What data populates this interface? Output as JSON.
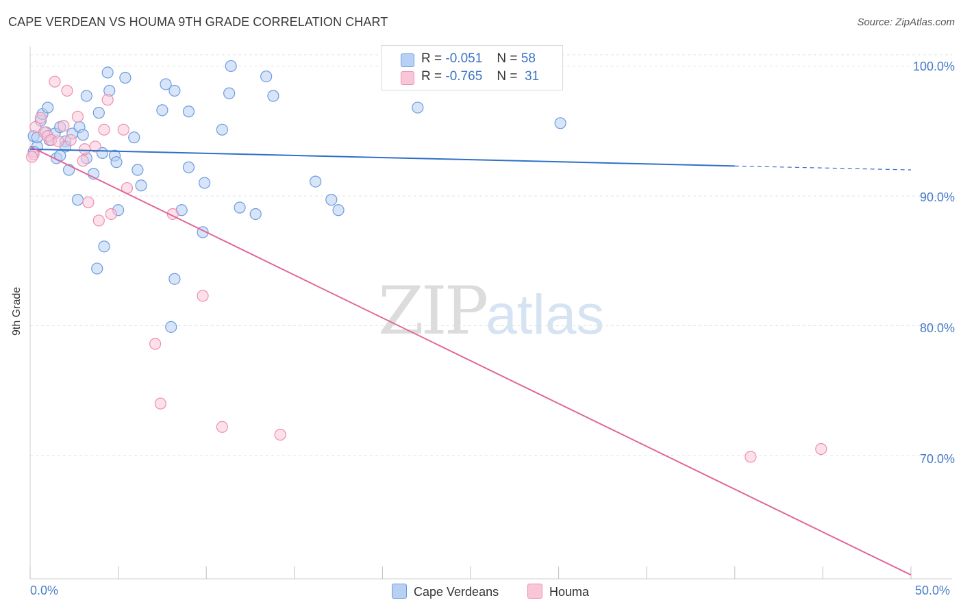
{
  "title": "CAPE VERDEAN VS HOUMA 9TH GRADE CORRELATION CHART",
  "source": "Source: ZipAtlas.com",
  "watermark": {
    "zip": "ZIP",
    "atlas": "atlas"
  },
  "colors": {
    "blue": "#6b9be0",
    "blue_fill": "#b8d0f3",
    "blue_line": "#2f6fc8",
    "pink": "#ee8eb0",
    "pink_fill": "#f9c6d8",
    "pink_line": "#e0679a",
    "axis_text": "#4a7cc7",
    "grid": "#e2e2e2"
  },
  "legend": {
    "r_label": "R =",
    "n_label": "N =",
    "series": [
      {
        "r": "-0.051",
        "n": "58",
        "color": "#b8d0f3",
        "border": "#6b9be0"
      },
      {
        "r": "-0.765",
        "n": "31",
        "color": "#f9c6d8",
        "border": "#ee8eb0"
      }
    ]
  },
  "bottom_legend": [
    {
      "label": "Cape Verdeans",
      "color": "#b8d0f3",
      "border": "#6b9be0"
    },
    {
      "label": "Houma",
      "color": "#f9c6d8",
      "border": "#ee8eb0"
    }
  ],
  "chart_data": {
    "type": "scatter",
    "title": "CAPE VERDEAN VS HOUMA 9TH GRADE CORRELATION CHART",
    "xlabel": "",
    "ylabel": "9th Grade",
    "xlim": [
      0,
      50
    ],
    "ylim": [
      60.5,
      101.5
    ],
    "x_ticks": [
      0,
      5,
      10,
      15,
      20,
      25,
      30,
      35,
      40,
      45,
      50
    ],
    "x_tick_labels": {
      "left": "0.0%",
      "right": "50.0%"
    },
    "y_ticks": [
      {
        "value": 100,
        "label": "100.0%"
      },
      {
        "value": 90,
        "label": "90.0%"
      },
      {
        "value": 80,
        "label": "80.0%"
      },
      {
        "value": 70,
        "label": "70.0%"
      }
    ],
    "series": [
      {
        "name": "Cape Verdeans",
        "r": -0.051,
        "n": 58,
        "trend": {
          "x0": 0,
          "y0": 93.6,
          "x1": 40,
          "y1": 92.3,
          "dash_x1": 50,
          "dash_y1": 92.0
        },
        "points": [
          [
            0.2,
            94.6
          ],
          [
            0.4,
            93.8
          ],
          [
            0.4,
            94.5
          ],
          [
            0.6,
            95.8
          ],
          [
            0.7,
            96.3
          ],
          [
            0.9,
            94.9
          ],
          [
            1.0,
            96.8
          ],
          [
            1.1,
            94.3
          ],
          [
            1.4,
            94.8
          ],
          [
            1.5,
            92.9
          ],
          [
            1.7,
            93.1
          ],
          [
            1.7,
            95.3
          ],
          [
            2.0,
            94.2
          ],
          [
            2.0,
            93.8
          ],
          [
            2.2,
            92.0
          ],
          [
            2.4,
            94.8
          ],
          [
            2.7,
            89.7
          ],
          [
            2.8,
            95.3
          ],
          [
            3.0,
            94.7
          ],
          [
            3.2,
            97.7
          ],
          [
            3.2,
            92.9
          ],
          [
            3.6,
            91.7
          ],
          [
            3.8,
            84.4
          ],
          [
            3.9,
            96.4
          ],
          [
            4.1,
            93.3
          ],
          [
            4.2,
            86.1
          ],
          [
            4.4,
            99.5
          ],
          [
            4.5,
            98.1
          ],
          [
            4.8,
            93.1
          ],
          [
            4.9,
            92.6
          ],
          [
            5.0,
            88.9
          ],
          [
            5.4,
            99.1
          ],
          [
            5.9,
            94.5
          ],
          [
            6.1,
            92.0
          ],
          [
            6.3,
            90.8
          ],
          [
            7.5,
            96.6
          ],
          [
            7.7,
            98.6
          ],
          [
            8.2,
            98.1
          ],
          [
            8.2,
            83.6
          ],
          [
            8.0,
            79.9
          ],
          [
            8.6,
            88.9
          ],
          [
            9.0,
            96.5
          ],
          [
            9.0,
            92.2
          ],
          [
            9.8,
            87.2
          ],
          [
            9.9,
            91.0
          ],
          [
            10.9,
            95.1
          ],
          [
            11.4,
            100.0
          ],
          [
            11.3,
            97.9
          ],
          [
            11.9,
            89.1
          ],
          [
            12.8,
            88.6
          ],
          [
            13.4,
            99.2
          ],
          [
            13.8,
            97.7
          ],
          [
            16.2,
            91.1
          ],
          [
            17.1,
            89.7
          ],
          [
            17.5,
            88.9
          ],
          [
            22.0,
            96.8
          ],
          [
            30.1,
            95.6
          ],
          [
            0.2,
            93.4
          ]
        ]
      },
      {
        "name": "Houma",
        "r": -0.765,
        "n": 31,
        "trend": {
          "x0": 0,
          "y0": 93.8,
          "x1": 50,
          "y1": 60.8
        },
        "points": [
          [
            0.2,
            93.2
          ],
          [
            0.3,
            95.3
          ],
          [
            0.6,
            96.0
          ],
          [
            0.8,
            94.9
          ],
          [
            1.0,
            94.6
          ],
          [
            1.2,
            94.3
          ],
          [
            1.4,
            98.8
          ],
          [
            1.9,
            95.4
          ],
          [
            2.1,
            98.1
          ],
          [
            2.3,
            94.3
          ],
          [
            2.7,
            96.1
          ],
          [
            3.0,
            92.7
          ],
          [
            3.1,
            93.6
          ],
          [
            3.3,
            89.5
          ],
          [
            3.9,
            88.1
          ],
          [
            4.2,
            95.1
          ],
          [
            4.4,
            97.4
          ],
          [
            4.6,
            88.6
          ],
          [
            5.3,
            95.1
          ],
          [
            5.5,
            90.6
          ],
          [
            7.1,
            78.6
          ],
          [
            7.4,
            74.0
          ],
          [
            8.1,
            88.6
          ],
          [
            9.8,
            82.3
          ],
          [
            10.9,
            72.2
          ],
          [
            14.2,
            71.6
          ],
          [
            0.1,
            93.0
          ],
          [
            40.9,
            69.9
          ],
          [
            44.9,
            70.5
          ],
          [
            3.7,
            93.8
          ],
          [
            1.6,
            94.2
          ]
        ]
      }
    ]
  }
}
